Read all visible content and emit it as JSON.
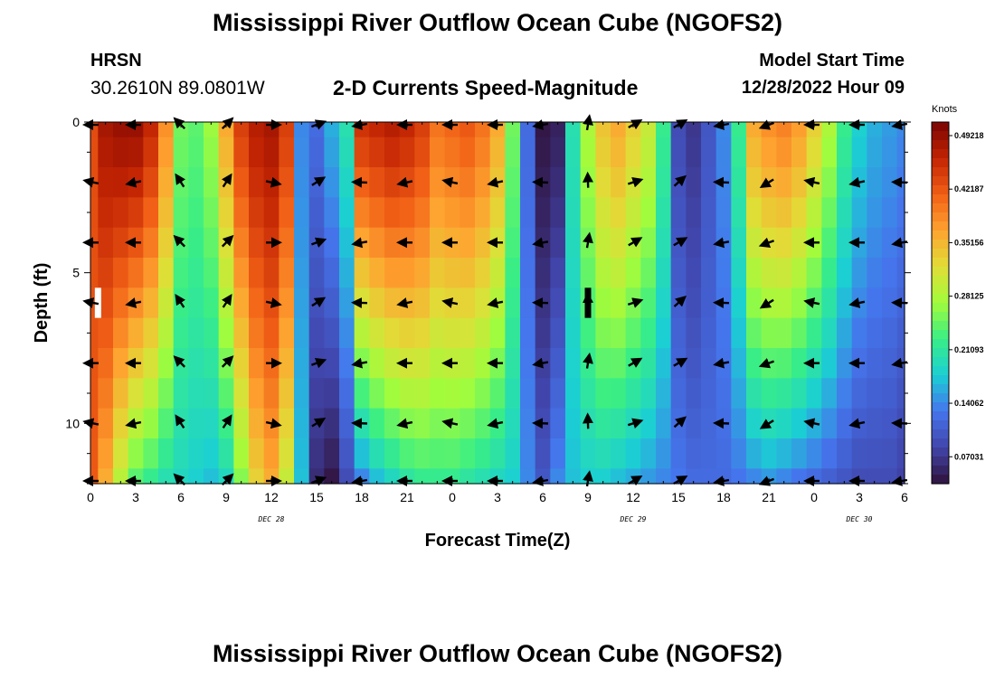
{
  "header": {
    "title": "Mississippi River Outflow Ocean Cube (NGOFS2)",
    "station_code": "HRSN",
    "station_coords": "30.2610N  89.0801W",
    "subtitle": "2-D Currents Speed-Magnitude",
    "model_start_label": "Model Start Time",
    "model_start_value": "12/28/2022 Hour 09"
  },
  "footer": {
    "title": "Mississippi River Outflow Ocean Cube (NGOFS2)"
  },
  "chart_data": {
    "type": "heatmap",
    "title": "2-D Currents Speed-Magnitude",
    "xlabel": "Forecast Time(Z)",
    "ylabel": "Depth (ft)",
    "x_hours": [
      0,
      54
    ],
    "y_range": [
      0,
      12
    ],
    "x_tick_labels": [
      "0",
      "3",
      "6",
      "9",
      "12",
      "15",
      "18",
      "21",
      "0",
      "3",
      "6",
      "9",
      "12",
      "15",
      "18",
      "21",
      "0",
      "3",
      "6"
    ],
    "y_tick_labels": [
      "0",
      "5",
      "10"
    ],
    "y_tick_values": [
      0,
      5,
      10
    ],
    "day_labels": [
      {
        "text": "DEC 28",
        "hour": 12
      },
      {
        "text": "DEC 29",
        "hour": 36
      },
      {
        "text": "DEC 30",
        "hour": 51
      }
    ],
    "colorbar": {
      "unit": "Knots",
      "range": [
        0.035,
        0.51
      ],
      "labels": [
        "0.49218",
        "0.42187",
        "0.35156",
        "0.28125",
        "0.21093",
        "0.14062",
        "0.07031"
      ],
      "label_values": [
        0.49218,
        0.42187,
        0.35156,
        0.28125,
        0.21093,
        0.14062,
        0.07031
      ]
    },
    "depth_levels": [
      0,
      1,
      2,
      3,
      4,
      5,
      6,
      7,
      8,
      9,
      10,
      11,
      12
    ],
    "speed_profile": {
      "hours": [
        0,
        1,
        2,
        3,
        4,
        5,
        6,
        7,
        8,
        9,
        10,
        11,
        12,
        13,
        14,
        15,
        16,
        17,
        18,
        19,
        20,
        21,
        22,
        23,
        24,
        25,
        26,
        27,
        28,
        29,
        30,
        31,
        32,
        33,
        34,
        35,
        36,
        37,
        38,
        39,
        40,
        41,
        42,
        43,
        44,
        45,
        46,
        47,
        48,
        49,
        50,
        51,
        52,
        53,
        54
      ],
      "surface": [
        0.43,
        0.48,
        0.49,
        0.49,
        0.46,
        0.38,
        0.25,
        0.24,
        0.27,
        0.36,
        0.44,
        0.47,
        0.48,
        0.44,
        0.14,
        0.12,
        0.16,
        0.2,
        0.45,
        0.46,
        0.47,
        0.46,
        0.44,
        0.4,
        0.41,
        0.42,
        0.4,
        0.36,
        0.25,
        0.12,
        0.04,
        0.05,
        0.2,
        0.28,
        0.34,
        0.36,
        0.33,
        0.3,
        0.22,
        0.09,
        0.07,
        0.1,
        0.14,
        0.22,
        0.36,
        0.38,
        0.39,
        0.37,
        0.33,
        0.28,
        0.22,
        0.18,
        0.16,
        0.15,
        0.14
      ],
      "bottom": [
        0.42,
        0.36,
        0.29,
        0.24,
        0.22,
        0.2,
        0.19,
        0.18,
        0.17,
        0.19,
        0.26,
        0.33,
        0.36,
        0.3,
        0.17,
        0.06,
        0.04,
        0.09,
        0.14,
        0.17,
        0.19,
        0.21,
        0.22,
        0.22,
        0.22,
        0.21,
        0.2,
        0.19,
        0.18,
        0.14,
        0.1,
        0.14,
        0.17,
        0.18,
        0.18,
        0.17,
        0.16,
        0.15,
        0.14,
        0.13,
        0.12,
        0.12,
        0.12,
        0.13,
        0.14,
        0.15,
        0.14,
        0.13,
        0.12,
        0.11,
        0.1,
        0.09,
        0.09,
        0.09,
        0.08
      ]
    },
    "arrow_depths": [
      0,
      2,
      4,
      6,
      8,
      10,
      12
    ],
    "arrow_hours": [
      0,
      3,
      6,
      9,
      12,
      15,
      18,
      21,
      24,
      27,
      30,
      33,
      36,
      39,
      42,
      45,
      48,
      51,
      54
    ],
    "arrow_directions_deg": [
      180,
      180,
      135,
      45,
      0,
      20,
      190,
      180,
      180,
      180,
      190,
      80,
      30,
      30,
      190,
      200,
      180,
      180,
      190
    ],
    "markers": [
      {
        "hour": 0.5,
        "depth_from": 5.5,
        "depth_to": 6.5,
        "color": "#ffffff"
      },
      {
        "hour": 33,
        "depth_from": 5.5,
        "depth_to": 6.5,
        "color": "#000000"
      }
    ]
  }
}
